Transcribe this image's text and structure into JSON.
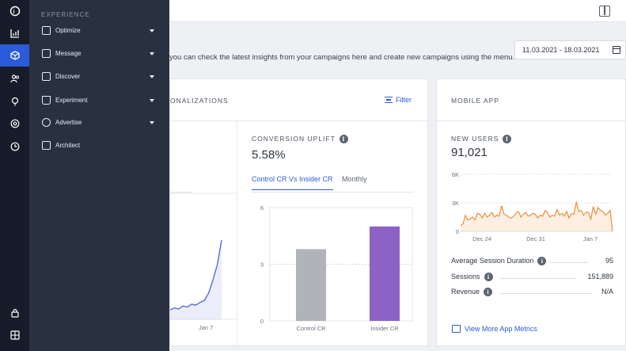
{
  "header": {
    "panel_toggle_icon": "panel-toggle-icon"
  },
  "welcome_text": "you can check the latest insights from your campaigns here and create new campaigns using the menu.",
  "date_range": {
    "value": "11.03.2021 - 18.03.2021",
    "icon": "calendar-icon"
  },
  "personalizations": {
    "title": "ONALIZATIONS",
    "filter_label": "Filter",
    "left_chart": {
      "type": "area",
      "x_ticks": [
        "Jan 7"
      ],
      "color": "#5b6bd6"
    },
    "conversion_uplift": {
      "label": "CONVERSION UPLIFT",
      "value": "5.58%",
      "tabs": [
        "Control CR Vs Insider CR",
        "Monthly"
      ]
    }
  },
  "chart_data": [
    {
      "type": "area",
      "series": [
        {
          "values": [
            0.5,
            0.6,
            0.55,
            0.7,
            0.65,
            0.8,
            0.75,
            0.9,
            1.0,
            1.4,
            2.1,
            2.9,
            4.2
          ]
        }
      ],
      "x_ticks": [
        "Jan 7"
      ],
      "color": "#5b6bd6"
    },
    {
      "type": "bar",
      "categories": [
        "Control CR",
        "Insider CR"
      ],
      "values": [
        3.8,
        5.0
      ],
      "y_ticks": [
        0,
        3,
        6
      ],
      "ylim": [
        0,
        6
      ],
      "colors": [
        "#b0b3ba",
        "#8c62c6"
      ]
    },
    {
      "type": "area",
      "categories_ticks": [
        "Dec 24",
        "Dec 31",
        "Jan 7"
      ],
      "y_ticks": [
        "0",
        "3K",
        "6K"
      ],
      "ylim": [
        0,
        6000
      ],
      "values": [
        600,
        800,
        1700,
        1200,
        1300,
        1500,
        1200,
        1900,
        1800,
        1400,
        1900,
        1500,
        1700,
        2000,
        1500,
        1700,
        1600,
        2700,
        1800,
        1700,
        1500,
        1400,
        1600,
        1900,
        2100,
        1500,
        1800,
        2000,
        1600,
        1700,
        1900,
        1800,
        1400,
        1700,
        1600,
        2200,
        2000,
        1500,
        1700,
        1600,
        2300,
        1700,
        1900,
        1600,
        2100,
        1400,
        1900,
        1800,
        3100,
        2100,
        2200,
        1700,
        2000,
        2000,
        1300,
        2600,
        1800,
        2500,
        2200,
        2100,
        1700,
        1900,
        2200,
        0
      ],
      "color": "#e8923f"
    }
  ],
  "mobile_app": {
    "title": "MOBILE APP",
    "new_users_label": "NEW USERS",
    "new_users_value": "91,021",
    "stats": [
      {
        "label": "Average Session Duration",
        "value": "95"
      },
      {
        "label": "Sessions",
        "value": "151,889"
      },
      {
        "label": "Revenue",
        "value": "N/A"
      }
    ],
    "more_link": "View More App Metrics"
  },
  "sidebar": {
    "rail": [
      "insider-logo-icon",
      "analytics-icon",
      "experience-icon",
      "audience-icon",
      "idea-icon",
      "integration-icon",
      "dashboard-icon",
      "lock-icon",
      "apps-grid-icon"
    ],
    "active_index": 2,
    "menu_header": "EXPERIENCE",
    "items": [
      {
        "label": "Optimize",
        "icon": "optimize-icon",
        "has_caret": true
      },
      {
        "label": "Message",
        "icon": "message-icon",
        "has_caret": true
      },
      {
        "label": "Discover",
        "icon": "discover-icon",
        "has_caret": true
      },
      {
        "label": "Experiment",
        "icon": "flask-icon",
        "has_caret": true
      },
      {
        "label": "Advertise",
        "icon": "advertise-icon",
        "has_caret": true
      },
      {
        "label": "Architect",
        "icon": "architect-icon",
        "has_caret": false
      }
    ]
  },
  "colors": {
    "accent": "#2b5bd8",
    "sidebar_bg": "#293141",
    "rail_bg": "#161c29",
    "bar_control": "#b0b3ba",
    "bar_insider": "#8c62c6",
    "users_line": "#e8923f"
  }
}
